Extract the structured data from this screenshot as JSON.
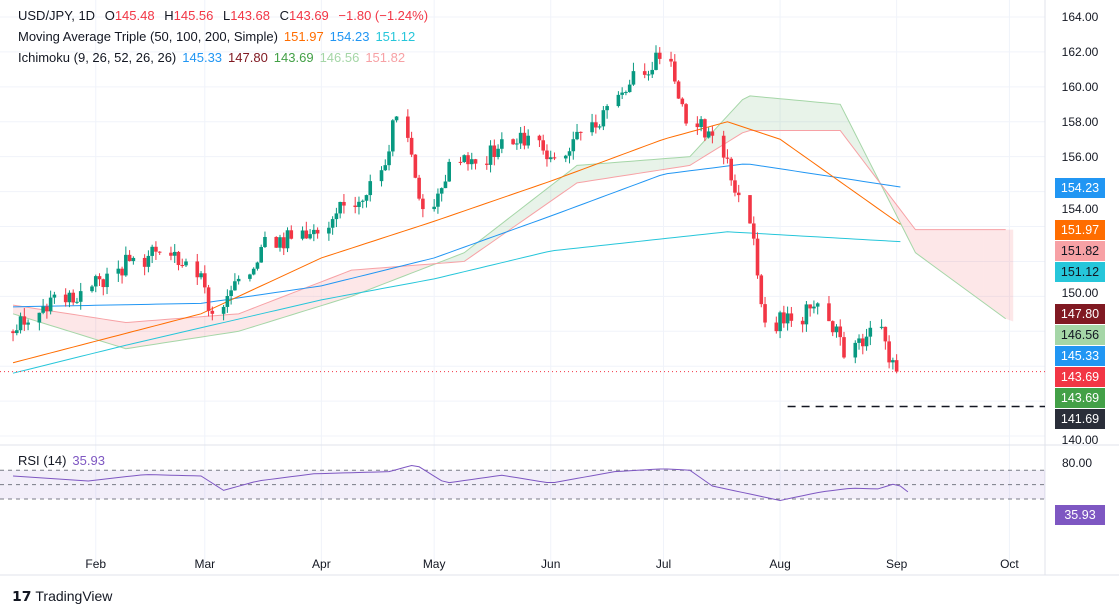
{
  "header": {
    "symbol": "USD/JPY, 1D",
    "o_label": "O",
    "o": "145.48",
    "h_label": "H",
    "h": "145.56",
    "l_label": "L",
    "l": "143.68",
    "c_label": "C",
    "c": "143.69",
    "change": "−1.80 (−1.24%)"
  },
  "ma": {
    "label": "Moving Average Triple (50, 100, 200, Simple)",
    "v50": "151.97",
    "v100": "154.23",
    "v200": "151.12"
  },
  "ichimoku": {
    "label": "Ichimoku (9, 26, 52, 26, 26)",
    "conv": "145.33",
    "base": "147.80",
    "lag": "143.69",
    "spanA": "146.56",
    "spanB": "151.82"
  },
  "rsi": {
    "label": "RSI (14)",
    "value": "35.93",
    "ticks": [
      "80.00"
    ]
  },
  "price_tags": [
    {
      "v": "154.23",
      "bg": "#2196f3",
      "fg": "#fff"
    },
    {
      "v": "151.97",
      "bg": "#ff6d00",
      "fg": "#fff"
    },
    {
      "v": "151.82",
      "bg": "#f7a1a5",
      "fg": "#131722"
    },
    {
      "v": "151.12",
      "bg": "#26c6da",
      "fg": "#131722"
    },
    {
      "v": "147.80",
      "bg": "#801922",
      "fg": "#fff"
    },
    {
      "v": "146.56",
      "bg": "#a5d6a7",
      "fg": "#131722"
    },
    {
      "v": "145.33",
      "bg": "#2196f3",
      "fg": "#fff"
    },
    {
      "v": "143.69",
      "bg": "#f23645",
      "fg": "#fff"
    },
    {
      "v": "143.69",
      "bg": "#43a047",
      "fg": "#fff"
    },
    {
      "v": "141.69",
      "bg": "#2a2e39",
      "fg": "#fff"
    }
  ],
  "brand": "TradingView",
  "chart_data": {
    "type": "candlestick",
    "yticks": [
      "164.00",
      "162.00",
      "160.00",
      "158.00",
      "156.00",
      "154.00",
      "150.00",
      "140.00"
    ],
    "ylim": [
      140,
      164
    ],
    "xticks": [
      "Feb",
      "Mar",
      "Apr",
      "May",
      "Jun",
      "Jul",
      "Aug",
      "Sep",
      "Oct"
    ],
    "xtick_days": [
      32,
      61,
      92,
      122,
      153,
      183,
      214,
      245,
      275
    ],
    "weekly_close": [
      146.5,
      148.1,
      148.3,
      149.3,
      150.2,
      150.5,
      150.0,
      147.0,
      149.0,
      151.4,
      151.3,
      151.6,
      153.2,
      154.6,
      158.3,
      153.0,
      155.7,
      155.6,
      157.0,
      157.2,
      155.9,
      157.4,
      158.9,
      160.9,
      161.6,
      157.9,
      157.2,
      153.8,
      146.5,
      146.6,
      147.6,
      144.5,
      146.2,
      143.69
    ],
    "start_day": 10,
    "ma50": [
      [
        10,
        144.2
      ],
      [
        60,
        147.0
      ],
      [
        92,
        150.2
      ],
      [
        122,
        152.3
      ],
      [
        153,
        154.6
      ],
      [
        183,
        157.0
      ],
      [
        200,
        158.0
      ],
      [
        214,
        157.0
      ],
      [
        247,
        151.97
      ]
    ],
    "ma100": [
      [
        10,
        147.4
      ],
      [
        60,
        147.6
      ],
      [
        92,
        148.6
      ],
      [
        122,
        150.2
      ],
      [
        153,
        152.6
      ],
      [
        183,
        155.0
      ],
      [
        205,
        155.6
      ],
      [
        247,
        154.23
      ]
    ],
    "ma200": [
      [
        10,
        143.6
      ],
      [
        40,
        145.2
      ],
      [
        92,
        147.8
      ],
      [
        122,
        149.0
      ],
      [
        153,
        150.6
      ],
      [
        200,
        151.7
      ],
      [
        247,
        151.12
      ]
    ],
    "spanA": [
      [
        10,
        147.0
      ],
      [
        40,
        145.0
      ],
      [
        70,
        146.0
      ],
      [
        100,
        148.0
      ],
      [
        130,
        150.5
      ],
      [
        160,
        155.5
      ],
      [
        190,
        156.0
      ],
      [
        205,
        159.5
      ],
      [
        230,
        159.0
      ],
      [
        250,
        150.5
      ],
      [
        275,
        146.56
      ]
    ],
    "spanB": [
      [
        10,
        147.5
      ],
      [
        40,
        146.5
      ],
      [
        70,
        147.0
      ],
      [
        100,
        149.5
      ],
      [
        130,
        150.0
      ],
      [
        160,
        154.5
      ],
      [
        190,
        155.5
      ],
      [
        205,
        157.5
      ],
      [
        230,
        157.5
      ],
      [
        250,
        151.82
      ],
      [
        275,
        151.82
      ]
    ],
    "support": 141.69,
    "rsi": [
      [
        10,
        62
      ],
      [
        30,
        55
      ],
      [
        45,
        64
      ],
      [
        60,
        62
      ],
      [
        66,
        42
      ],
      [
        75,
        55
      ],
      [
        90,
        65
      ],
      [
        110,
        68
      ],
      [
        117,
        78
      ],
      [
        125,
        52
      ],
      [
        140,
        63
      ],
      [
        153,
        52
      ],
      [
        170,
        68
      ],
      [
        183,
        72
      ],
      [
        190,
        70
      ],
      [
        196,
        48
      ],
      [
        214,
        28
      ],
      [
        225,
        40
      ],
      [
        233,
        45
      ],
      [
        240,
        44
      ],
      [
        245,
        52
      ],
      [
        249,
        35.93
      ]
    ],
    "rsi_levels": [
      70,
      50,
      30
    ]
  }
}
